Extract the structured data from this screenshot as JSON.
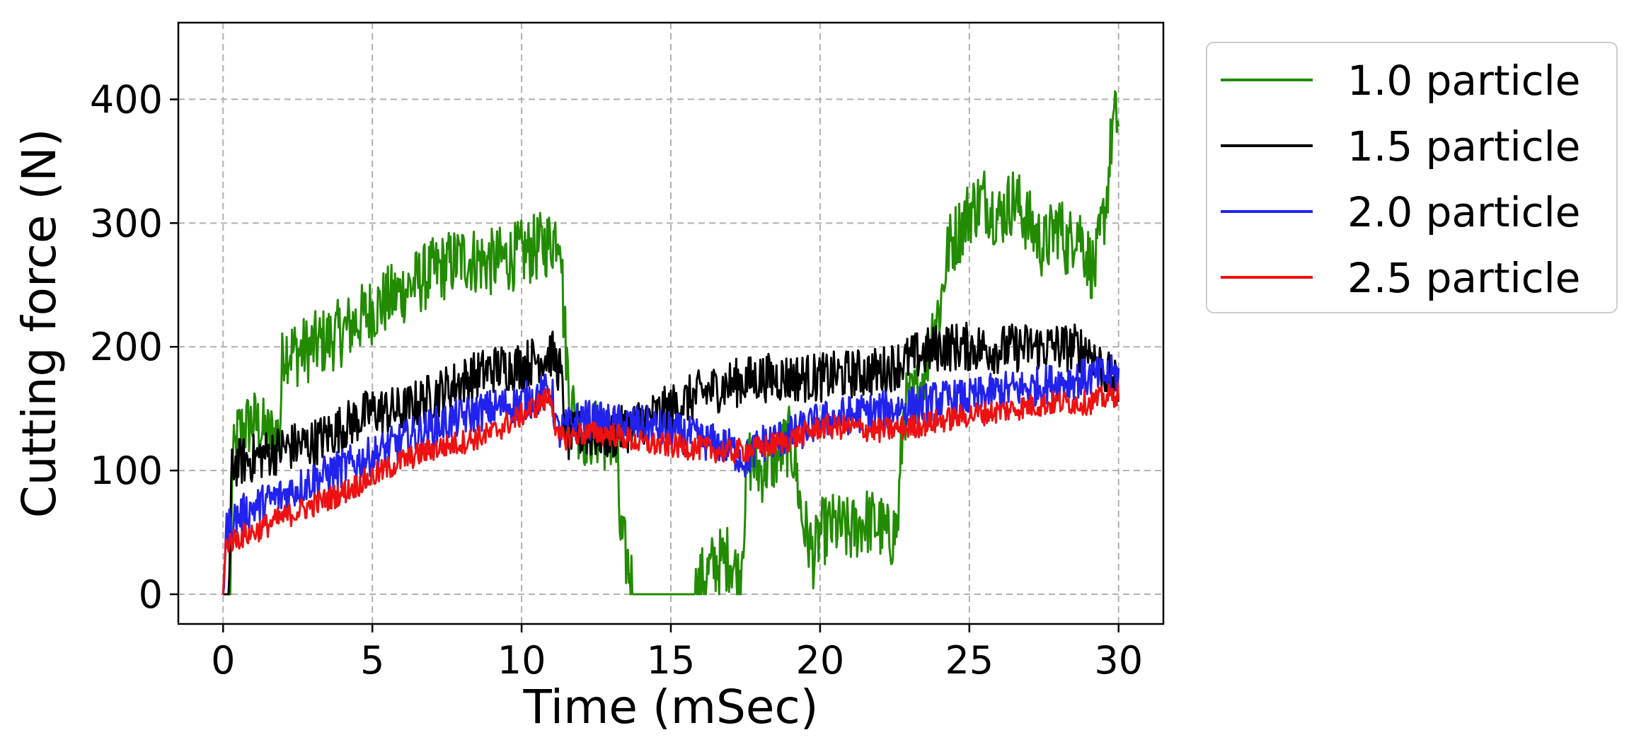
{
  "chart_data": {
    "type": "line",
    "title": "",
    "xlabel": "Time (mSec)",
    "ylabel": "Cutting force (N)",
    "xlim": [
      -1.5,
      31.5
    ],
    "ylim": [
      -24,
      462
    ],
    "xticks": [
      0,
      5,
      10,
      15,
      20,
      25,
      30
    ],
    "yticks": [
      0,
      100,
      200,
      300,
      400
    ],
    "xtick_labels": [
      "0",
      "5",
      "10",
      "15",
      "20",
      "25",
      "30"
    ],
    "ytick_labels": [
      "0",
      "100",
      "200",
      "300",
      "400"
    ],
    "grid": true,
    "legend_position": "outside-right-top",
    "series": [
      {
        "name": "1.0 particle",
        "color": "#228b00",
        "noise": 28,
        "points": [
          [
            0,
            0
          ],
          [
            0.25,
            0
          ],
          [
            0.3,
            100
          ],
          [
            0.5,
            130
          ],
          [
            1.0,
            140
          ],
          [
            1.5,
            128
          ],
          [
            1.9,
            130
          ],
          [
            2.0,
            200
          ],
          [
            2.5,
            195
          ],
          [
            3.0,
            200
          ],
          [
            4.0,
            212
          ],
          [
            5.0,
            230
          ],
          [
            6.0,
            245
          ],
          [
            7.0,
            260
          ],
          [
            8.0,
            272
          ],
          [
            9.0,
            268
          ],
          [
            10.0,
            275
          ],
          [
            11.0,
            285
          ],
          [
            11.3,
            300
          ],
          [
            11.4,
            230
          ],
          [
            11.6,
            160
          ],
          [
            12.0,
            130
          ],
          [
            12.5,
            130
          ],
          [
            13.0,
            125
          ],
          [
            13.2,
            110
          ],
          [
            13.3,
            50
          ],
          [
            13.6,
            20
          ],
          [
            13.8,
            0
          ],
          [
            15.0,
            0
          ],
          [
            15.8,
            0
          ],
          [
            16.0,
            10
          ],
          [
            16.5,
            25
          ],
          [
            17.0,
            30
          ],
          [
            17.3,
            10
          ],
          [
            17.6,
            110
          ],
          [
            18.0,
            100
          ],
          [
            18.5,
            110
          ],
          [
            19.0,
            125
          ],
          [
            19.2,
            100
          ],
          [
            19.4,
            60
          ],
          [
            19.8,
            30
          ],
          [
            20.0,
            50
          ],
          [
            20.5,
            55
          ],
          [
            21.0,
            50
          ],
          [
            21.5,
            60
          ],
          [
            22.0,
            55
          ],
          [
            22.3,
            45
          ],
          [
            22.6,
            55
          ],
          [
            22.8,
            150
          ],
          [
            23.2,
            160
          ],
          [
            23.5,
            180
          ],
          [
            23.8,
            220
          ],
          [
            24.0,
            230
          ],
          [
            24.3,
            280
          ],
          [
            24.8,
            300
          ],
          [
            25.0,
            310
          ],
          [
            25.5,
            320
          ],
          [
            26.0,
            305
          ],
          [
            26.5,
            320
          ],
          [
            27.0,
            300
          ],
          [
            27.5,
            280
          ],
          [
            28.0,
            300
          ],
          [
            28.3,
            280
          ],
          [
            28.6,
            300
          ],
          [
            29.0,
            270
          ],
          [
            29.2,
            260
          ],
          [
            29.6,
            320
          ],
          [
            29.8,
            380
          ],
          [
            30.0,
            385
          ]
        ]
      },
      {
        "name": "1.5 particle",
        "color": "#000000",
        "noise": 20,
        "points": [
          [
            0,
            0
          ],
          [
            0.2,
            0
          ],
          [
            0.3,
            105
          ],
          [
            1.0,
            110
          ],
          [
            2.0,
            118
          ],
          [
            3.0,
            122
          ],
          [
            4.0,
            135
          ],
          [
            5.0,
            148
          ],
          [
            6.0,
            148
          ],
          [
            7.0,
            160
          ],
          [
            8.0,
            172
          ],
          [
            9.0,
            182
          ],
          [
            10.0,
            185
          ],
          [
            11.0,
            195
          ],
          [
            11.3,
            180
          ],
          [
            11.5,
            125
          ],
          [
            12.0,
            130
          ],
          [
            13.0,
            128
          ],
          [
            14.0,
            140
          ],
          [
            15.0,
            150
          ],
          [
            16.0,
            162
          ],
          [
            17.0,
            170
          ],
          [
            18.0,
            175
          ],
          [
            19.0,
            175
          ],
          [
            20.0,
            175
          ],
          [
            21.0,
            178
          ],
          [
            22.0,
            180
          ],
          [
            23.0,
            190
          ],
          [
            24.0,
            200
          ],
          [
            25.0,
            200
          ],
          [
            26.0,
            198
          ],
          [
            27.0,
            200
          ],
          [
            28.0,
            200
          ],
          [
            29.0,
            198
          ],
          [
            30.0,
            165
          ]
        ]
      },
      {
        "name": "2.0 particle",
        "color": "#2222ee",
        "noise": 16,
        "points": [
          [
            0,
            0
          ],
          [
            0.1,
            50
          ],
          [
            0.3,
            60
          ],
          [
            1.0,
            70
          ],
          [
            2.0,
            80
          ],
          [
            3.0,
            92
          ],
          [
            4.0,
            102
          ],
          [
            5.0,
            112
          ],
          [
            6.0,
            124
          ],
          [
            7.0,
            135
          ],
          [
            8.0,
            143
          ],
          [
            9.0,
            150
          ],
          [
            10.0,
            155
          ],
          [
            11.0,
            165
          ],
          [
            11.2,
            130
          ],
          [
            12.0,
            142
          ],
          [
            13.0,
            138
          ],
          [
            14.0,
            137
          ],
          [
            15.0,
            132
          ],
          [
            16.0,
            125
          ],
          [
            17.0,
            118
          ],
          [
            17.5,
            108
          ],
          [
            18.0,
            122
          ],
          [
            19.0,
            128
          ],
          [
            20.0,
            140
          ],
          [
            21.0,
            145
          ],
          [
            22.0,
            148
          ],
          [
            23.0,
            152
          ],
          [
            24.0,
            157
          ],
          [
            25.0,
            158
          ],
          [
            26.0,
            164
          ],
          [
            27.0,
            167
          ],
          [
            28.0,
            172
          ],
          [
            29.0,
            175
          ],
          [
            30.0,
            178
          ]
        ]
      },
      {
        "name": "2.5 particle",
        "color": "#ee1111",
        "noise": 10,
        "points": [
          [
            0,
            0
          ],
          [
            0.1,
            42
          ],
          [
            1.0,
            50
          ],
          [
            2.0,
            62
          ],
          [
            3.0,
            72
          ],
          [
            4.0,
            82
          ],
          [
            5.0,
            95
          ],
          [
            6.0,
            108
          ],
          [
            7.0,
            117
          ],
          [
            8.0,
            123
          ],
          [
            9.0,
            130
          ],
          [
            10.0,
            145
          ],
          [
            11.0,
            160
          ],
          [
            11.2,
            125
          ],
          [
            12.0,
            130
          ],
          [
            13.0,
            130
          ],
          [
            14.0,
            122
          ],
          [
            15.0,
            120
          ],
          [
            16.0,
            118
          ],
          [
            17.0,
            115
          ],
          [
            18.0,
            118
          ],
          [
            19.0,
            125
          ],
          [
            20.0,
            135
          ],
          [
            21.0,
            135
          ],
          [
            22.0,
            132
          ],
          [
            23.0,
            135
          ],
          [
            24.0,
            140
          ],
          [
            25.0,
            145
          ],
          [
            26.0,
            148
          ],
          [
            27.0,
            152
          ],
          [
            28.0,
            155
          ],
          [
            29.0,
            155
          ],
          [
            30.0,
            162
          ]
        ]
      }
    ]
  }
}
